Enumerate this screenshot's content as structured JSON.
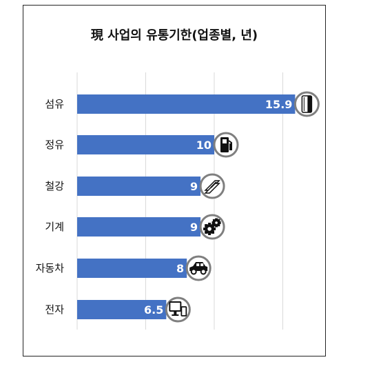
{
  "chart_data": {
    "type": "bar",
    "orientation": "horizontal",
    "title": "現 사업의 유통기한(업종별, 년)",
    "categories": [
      "섬유",
      "정유",
      "철강",
      "기계",
      "자동차",
      "전자"
    ],
    "values": [
      15.9,
      10,
      9,
      9,
      8,
      6.5
    ],
    "value_labels": [
      "15.9",
      "10",
      "9",
      "9",
      "8",
      "6.5"
    ],
    "icons": [
      "textile-roll-icon",
      "fuel-pump-icon",
      "steel-beam-icon",
      "gears-icon",
      "car-icon",
      "monitor-phone-icon"
    ],
    "xlim": [
      0,
      16.5
    ],
    "grid": true,
    "legend": "none",
    "colors": {
      "bar": "#4472C4",
      "grid": "#D9D9D9",
      "icon_ring": "#7F7F7F"
    }
  }
}
